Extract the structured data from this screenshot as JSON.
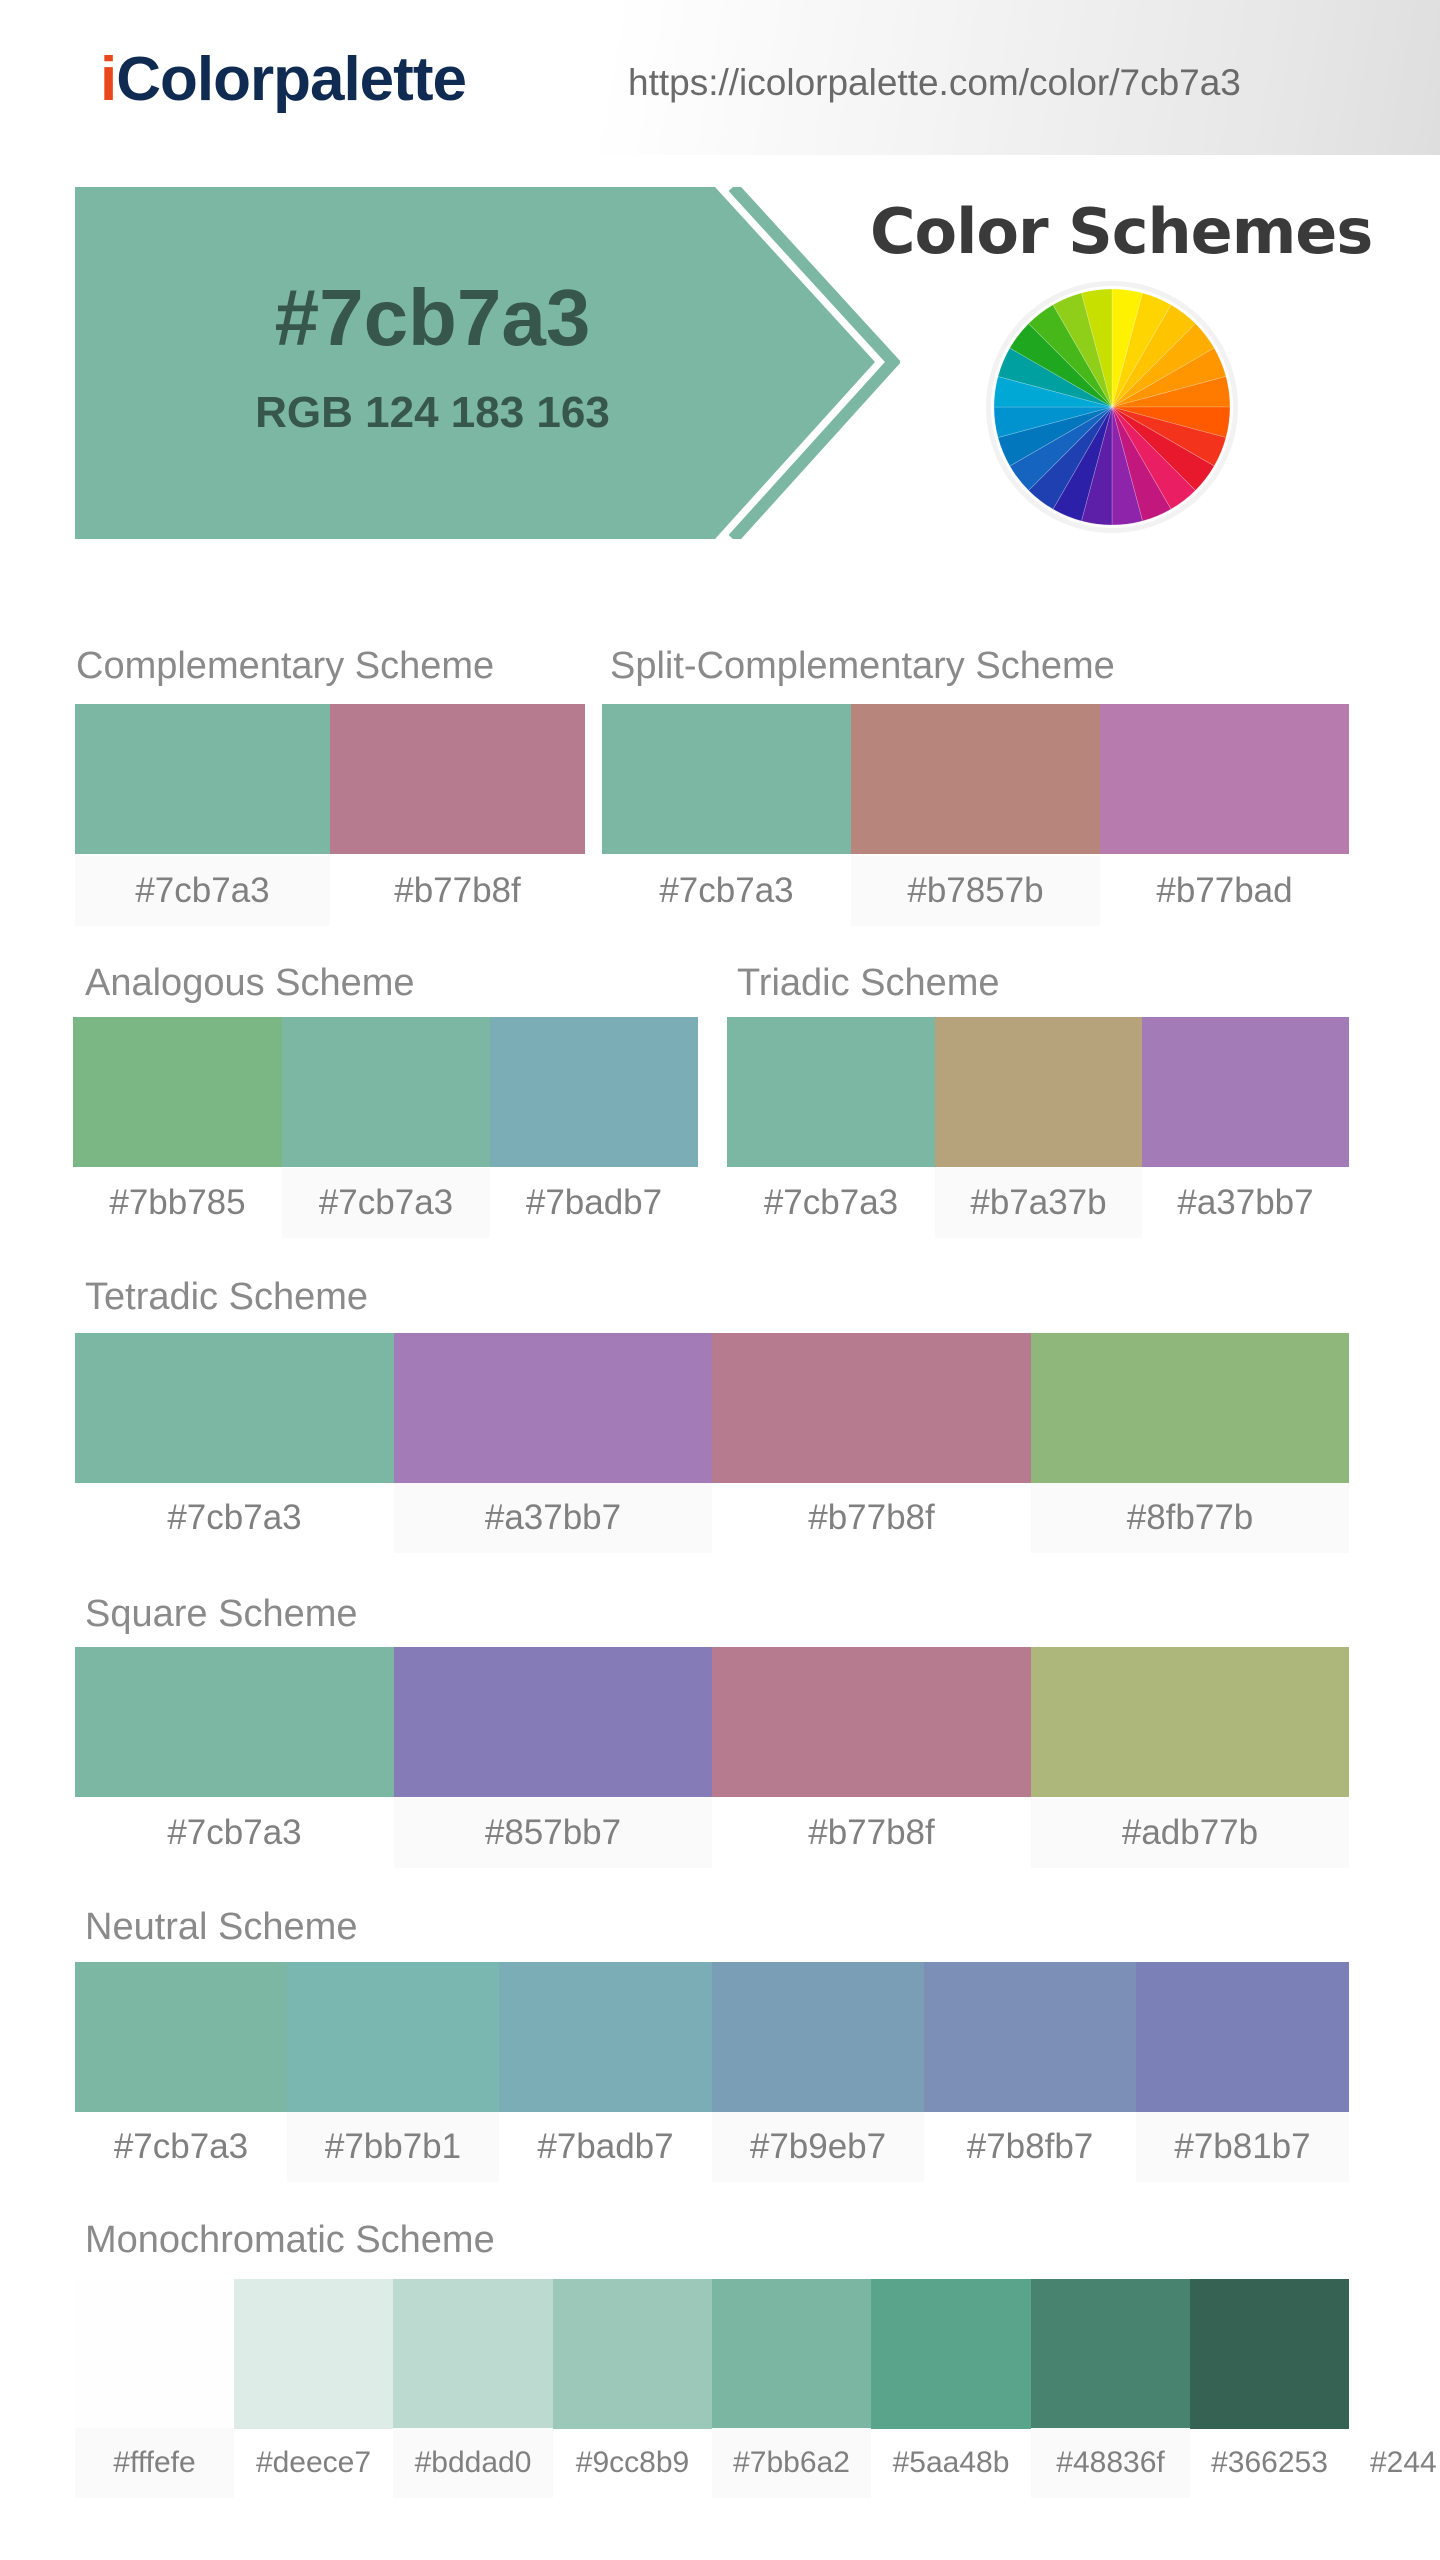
{
  "header": {
    "logo_i": "i",
    "logo_rest": "Colorpalette",
    "url": "https://icolorpalette.com/color/7cb7a3"
  },
  "hero": {
    "hex": "#7cb7a3",
    "rgb": "RGB 124 183 163",
    "color": "#7cb7a3",
    "title": "Color Schemes"
  },
  "schemes": {
    "complementary": {
      "title": "Complementary Scheme",
      "colors": [
        "#7cb7a3",
        "#b77b8f"
      ]
    },
    "split": {
      "title": "Split-Complementary Scheme",
      "colors": [
        "#7cb7a3",
        "#b7857b",
        "#b77bad"
      ]
    },
    "analogous": {
      "title": "Analogous Scheme",
      "colors": [
        "#7bb785",
        "#7cb7a3",
        "#7badb7"
      ]
    },
    "triadic": {
      "title": "Triadic Scheme",
      "colors": [
        "#7cb7a3",
        "#b7a37b",
        "#a37bb7"
      ]
    },
    "tetradic": {
      "title": "Tetradic Scheme",
      "colors": [
        "#7cb7a3",
        "#a37bb7",
        "#b77b8f",
        "#8fb77b"
      ]
    },
    "square": {
      "title": "Square Scheme",
      "colors": [
        "#7cb7a3",
        "#857bb7",
        "#b77b8f",
        "#adb77b"
      ]
    },
    "neutral": {
      "title": "Neutral Scheme",
      "colors": [
        "#7cb7a3",
        "#7bb7b1",
        "#7badb7",
        "#7b9eb7",
        "#7b8fb7",
        "#7b81b7"
      ]
    },
    "monochromatic": {
      "title": "Monochromatic Scheme",
      "colors": [
        "#fffefe",
        "#deece7",
        "#bddad0",
        "#9cc8b9",
        "#7bb6a2",
        "#5aa48b",
        "#48836f",
        "#366253"
      ],
      "overflow_label": "#244"
    }
  },
  "wheel_colors": [
    "#fff200",
    "#ffd500",
    "#ffc400",
    "#ffae00",
    "#ff9600",
    "#ff7b00",
    "#ff5a00",
    "#f3331c",
    "#e8192c",
    "#e91e63",
    "#c2187e",
    "#8e24aa",
    "#5e1fa8",
    "#2c1fa8",
    "#1e40b0",
    "#1565c0",
    "#0277bd",
    "#0093d0",
    "#00a8d6",
    "#00a0a0",
    "#1fa81f",
    "#47b81a",
    "#8fcf1a",
    "#c8e000"
  ]
}
